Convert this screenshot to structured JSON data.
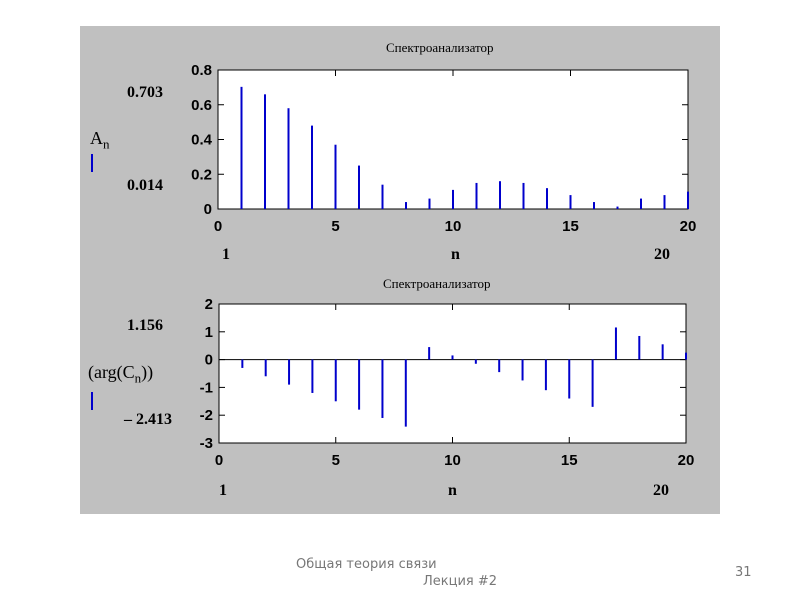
{
  "chart_data": [
    {
      "type": "bar",
      "title": "Спектроанализатор",
      "y_label_main": "A",
      "y_label_sub": "n",
      "range_max_label": "0.703",
      "range_min_label": "0.014",
      "x_start_label": "1",
      "x_var_label": "n",
      "x_end_label": "20",
      "x": [
        1,
        2,
        3,
        4,
        5,
        6,
        7,
        8,
        9,
        10,
        11,
        12,
        13,
        14,
        15,
        16,
        17,
        18,
        19,
        20
      ],
      "values": [
        0.703,
        0.66,
        0.58,
        0.48,
        0.37,
        0.25,
        0.14,
        0.04,
        0.06,
        0.11,
        0.15,
        0.16,
        0.15,
        0.12,
        0.08,
        0.04,
        0.014,
        0.06,
        0.08,
        0.1
      ],
      "xlim": [
        0,
        20
      ],
      "ylim": [
        0,
        0.8
      ],
      "xticks": [
        "0",
        "5",
        "10",
        "15",
        "20"
      ],
      "yticks": [
        "0",
        "0.2",
        "0.4",
        "0.6",
        "0.8"
      ],
      "color": "#0000cc"
    },
    {
      "type": "bar",
      "title": "Спектроанализатор",
      "y_label": "(arg(C",
      "y_label_sub": "n",
      "y_label_end": "))",
      "range_max_label": "1.156",
      "range_min_label": "– 2.413",
      "x_start_label": "1",
      "x_var_label": "n",
      "x_end_label": "20",
      "x": [
        1,
        2,
        3,
        4,
        5,
        6,
        7,
        8,
        9,
        10,
        11,
        12,
        13,
        14,
        15,
        16,
        17,
        18,
        19,
        20
      ],
      "values": [
        -0.3,
        -0.6,
        -0.9,
        -1.2,
        -1.5,
        -1.8,
        -2.1,
        -2.413,
        0.45,
        0.15,
        -0.15,
        -0.45,
        -0.75,
        -1.1,
        -1.4,
        -1.7,
        1.156,
        0.85,
        0.55,
        0.25
      ],
      "xlim": [
        0,
        20
      ],
      "ylim": [
        -3,
        2
      ],
      "xticks": [
        "0",
        "5",
        "10",
        "15",
        "20"
      ],
      "yticks": [
        "-3",
        "-2",
        "-1",
        "0",
        "1",
        "2"
      ],
      "color": "#0000cc"
    }
  ],
  "footer": {
    "line1": "Общая теория связи",
    "line2": "Лекция #2",
    "page_number": "31"
  }
}
